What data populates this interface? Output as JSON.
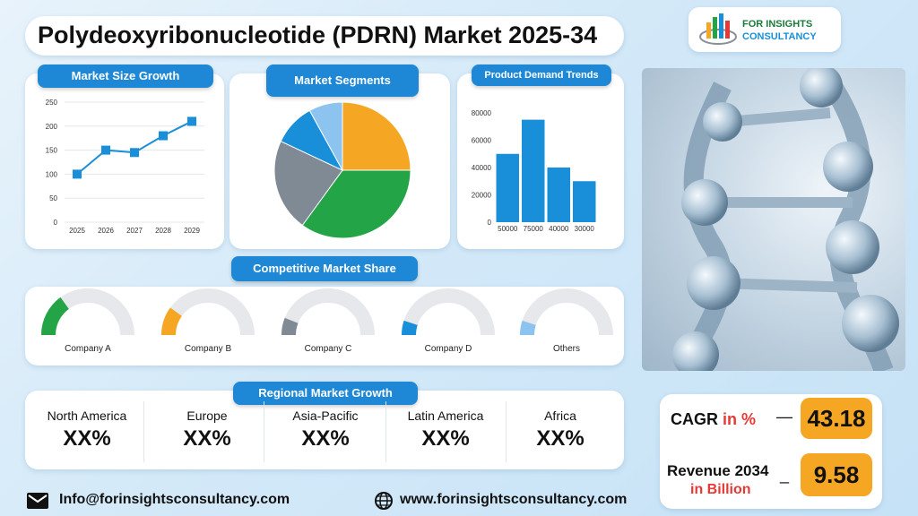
{
  "header": {
    "title": "Polydeoxyribonucleotide (PDRN) Market 2025-34",
    "logo_line1": "FOR INSIGHTS",
    "logo_line2": "CONSULTANCY"
  },
  "market_size": {
    "title": "Market Size Growth"
  },
  "market_segments": {
    "title": "Market Segments"
  },
  "product_demand": {
    "title": "Product Demand Trends"
  },
  "competitive": {
    "title": "Competitive Market Share",
    "companies": [
      {
        "name": "Company A",
        "color": "#22a447",
        "fraction": 0.3
      },
      {
        "name": "Company B",
        "color": "#f5a623",
        "fraction": 0.2
      },
      {
        "name": "Company C",
        "color": "#7f8a94",
        "fraction": 0.12
      },
      {
        "name": "Company D",
        "color": "#1a8fd9",
        "fraction": 0.1
      },
      {
        "name": "Others",
        "color": "#8cc3ef",
        "fraction": 0.1
      }
    ]
  },
  "regional": {
    "title": "Regional Market Growth",
    "regions": [
      {
        "name": "North America",
        "value": "XX%"
      },
      {
        "name": "Europe",
        "value": "XX%"
      },
      {
        "name": "Asia-Pacific",
        "value": "XX%"
      },
      {
        "name": "Latin America",
        "value": "XX%"
      },
      {
        "name": "Africa",
        "value": "XX%"
      }
    ]
  },
  "metrics": {
    "cagr_label": "CAGR",
    "cagr_unit": "in %",
    "cagr_dash": "—",
    "cagr_value": "43.18",
    "revenue_label": "Revenue 2034",
    "revenue_unit": "in Billion",
    "revenue_dash": "_",
    "revenue_value": "9.58"
  },
  "footer": {
    "email": "Info@forinsightsconsultancy.com",
    "website": "www.forinsightsconsultancy.com"
  },
  "colors": {
    "accent_blue": "#1e88d6",
    "orange": "#f5a623",
    "green": "#22a447",
    "gray": "#7f8a94",
    "light_blue": "#8cc3ef"
  },
  "chart_data": [
    {
      "type": "line",
      "x": [
        "2025",
        "2026",
        "2027",
        "2028",
        "2029"
      ],
      "series": [
        {
          "values": [
            100,
            150,
            145,
            180,
            210
          ]
        }
      ],
      "yticks": [
        "0",
        "50",
        "100",
        "150",
        "200",
        "250"
      ],
      "ylim": [
        0,
        250
      ],
      "grid": true,
      "color": "#1a8fd9"
    },
    {
      "type": "pie",
      "values": [
        25,
        35,
        22,
        10,
        8
      ],
      "colors": [
        "#f5a623",
        "#22a447",
        "#7f8a94",
        "#1a8fd9",
        "#8cc3ef"
      ]
    },
    {
      "type": "bar",
      "categories": [
        "50000",
        "75000",
        "40000",
        "30000"
      ],
      "values": [
        50000,
        75000,
        40000,
        30000
      ],
      "yticks": [
        "0",
        "20000",
        "40000",
        "60000",
        "80000"
      ],
      "ylim": [
        0,
        80000
      ],
      "color": "#1a8fd9"
    }
  ]
}
